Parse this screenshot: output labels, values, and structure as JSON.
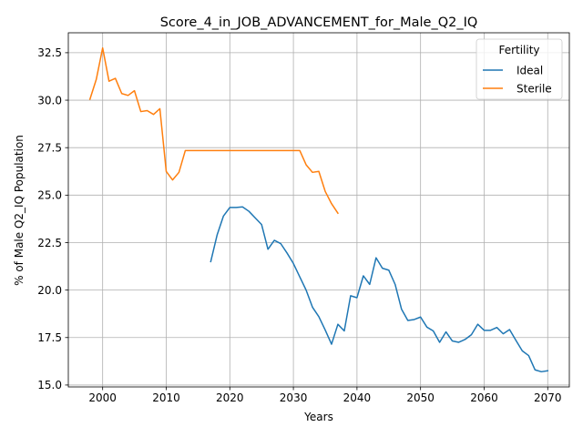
{
  "chart_data": {
    "type": "line",
    "title": "Score_4_in_JOB_ADVANCEMENT_for_Male_Q2_IQ",
    "xlabel": "Years",
    "ylabel": "% of Male Q2_IQ Population",
    "xlim": [
      1994.6,
      2073.4
    ],
    "ylim": [
      14.9,
      33.55
    ],
    "xticks": [
      2000,
      2010,
      2020,
      2030,
      2040,
      2050,
      2060,
      2070
    ],
    "yticks": [
      15.0,
      17.5,
      20.0,
      22.5,
      25.0,
      27.5,
      30.0,
      32.5
    ],
    "grid": true,
    "legend": {
      "title": "Fertility",
      "position": "top-right"
    },
    "series": [
      {
        "name": "Ideal",
        "color": "#1f77b4",
        "x": [
          2017,
          2018,
          2019,
          2020,
          2021,
          2022,
          2023,
          2024,
          2025,
          2026,
          2027,
          2028,
          2029,
          2030,
          2031,
          2032,
          2033,
          2034,
          2035,
          2036,
          2037,
          2038,
          2039,
          2040,
          2041,
          2042,
          2043,
          2044,
          2045,
          2046,
          2047,
          2048,
          2049,
          2050,
          2051,
          2052,
          2053,
          2054,
          2055,
          2056,
          2057,
          2058,
          2059,
          2060,
          2061,
          2062,
          2063,
          2064,
          2065,
          2066,
          2067,
          2068,
          2069,
          2070
        ],
        "y": [
          21.5,
          22.9,
          23.9,
          24.35,
          24.35,
          24.38,
          24.15,
          23.8,
          23.45,
          22.15,
          22.62,
          22.45,
          21.95,
          21.4,
          20.7,
          20.0,
          19.1,
          18.6,
          17.9,
          17.15,
          18.2,
          17.85,
          19.7,
          19.6,
          20.75,
          20.3,
          21.7,
          21.15,
          21.05,
          20.3,
          19.0,
          18.4,
          18.45,
          18.58,
          18.05,
          17.85,
          17.25,
          17.8,
          17.32,
          17.25,
          17.4,
          17.65,
          18.2,
          17.88,
          17.88,
          18.03,
          17.7,
          17.92,
          17.35,
          16.8,
          16.55,
          15.8,
          15.7,
          15.75
        ]
      },
      {
        "name": "Sterile",
        "color": "#ff7f0e",
        "x": [
          1998,
          1999,
          2000,
          2001,
          2002,
          2003,
          2004,
          2005,
          2006,
          2007,
          2008,
          2009,
          2010,
          2011,
          2012,
          2013,
          2014,
          2015,
          2016,
          2017,
          2018,
          2019,
          2020,
          2021,
          2022,
          2023,
          2024,
          2025,
          2026,
          2027,
          2028,
          2029,
          2030,
          2031,
          2032,
          2033,
          2034,
          2035,
          2036,
          2037
        ],
        "y": [
          30.05,
          31.1,
          32.75,
          31.0,
          31.15,
          30.35,
          30.25,
          30.5,
          29.4,
          29.45,
          29.25,
          29.55,
          26.25,
          25.8,
          26.2,
          27.35,
          27.35,
          27.35,
          27.35,
          27.35,
          27.35,
          27.35,
          27.35,
          27.35,
          27.35,
          27.35,
          27.35,
          27.35,
          27.35,
          27.35,
          27.35,
          27.35,
          27.35,
          27.35,
          26.6,
          26.2,
          26.25,
          25.2,
          24.55,
          24.05
        ]
      }
    ]
  }
}
